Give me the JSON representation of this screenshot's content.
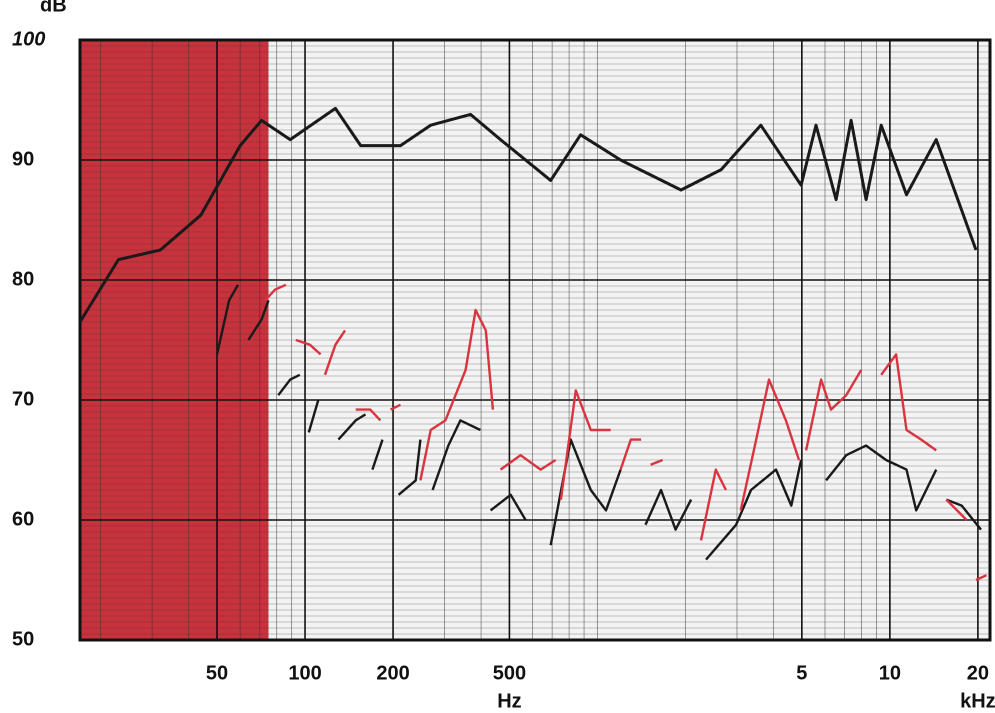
{
  "chart_data": {
    "type": "line",
    "ylabel": "dB",
    "x_unit_labels": [
      "Hz",
      "kHz"
    ],
    "xscale": "log",
    "xlim": [
      17,
      22000
    ],
    "ylim": [
      50,
      100
    ],
    "xticks": [
      50,
      100,
      200,
      500,
      {
        "value": 5000,
        "label": "5"
      },
      {
        "value": 10000,
        "label": "10"
      },
      {
        "value": 20000,
        "label": "20"
      }
    ],
    "yticks": [
      50,
      60,
      70,
      80,
      90,
      100
    ],
    "grid": true,
    "shaded_xrange": [
      17,
      75
    ],
    "shaded_color": "#c8323c",
    "series": [
      {
        "color": "#1a1a1a",
        "x": [
          17,
          23,
          32,
          44,
          60,
          71,
          89,
          127,
          155,
          212,
          269,
          368,
          466,
          692,
          876,
          1200,
          1930,
          2650,
          3620,
          4970,
          5590,
          6550,
          7370,
          8290,
          9340,
          11400,
          14400,
          19700
        ],
        "values": [
          76.5,
          81.7,
          82.5,
          85.4,
          91.2,
          93.3,
          91.7,
          94.3,
          91.2,
          91.2,
          92.9,
          93.8,
          91.7,
          88.3,
          92.1,
          90,
          87.5,
          89.2,
          92.9,
          87.9,
          92.9,
          86.7,
          93.3,
          86.7,
          92.9,
          87.1,
          91.7,
          82.5
        ]
      },
      {
        "color": "#1a1a1a",
        "x": [
          50,
          55,
          59,
          null,
          64,
          71,
          75,
          null,
          81,
          89,
          96,
          null,
          103,
          111,
          null,
          130,
          149,
          161,
          null,
          170,
          184,
          null,
          209,
          239,
          248,
          null,
          273,
          309,
          340,
          398,
          null,
          431,
          505,
          568,
          null,
          692,
          810,
          949,
          1070,
          1200,
          null,
          1460,
          1650,
          1850,
          2090,
          null,
          2350,
          2980,
          3350,
          4080,
          4600,
          4970,
          null,
          6050,
          7090,
          8290,
          9710,
          11400,
          12300,
          14400,
          null,
          15600,
          17600,
          20500
        ],
        "values": [
          73.8,
          78.3,
          79.6,
          null,
          75,
          76.7,
          78.3,
          null,
          70.4,
          71.7,
          72.1,
          null,
          67.3,
          70,
          null,
          66.7,
          68.3,
          68.8,
          null,
          64.2,
          66.7,
          null,
          62.1,
          63.3,
          66.7,
          null,
          62.5,
          66.2,
          68.3,
          67.5,
          null,
          60.8,
          62.1,
          60,
          null,
          57.9,
          66.7,
          62.5,
          60.8,
          64.2,
          null,
          59.6,
          62.5,
          59.2,
          61.7,
          null,
          56.7,
          59.6,
          62.5,
          64.2,
          61.2,
          65,
          null,
          63.3,
          65.4,
          66.2,
          65,
          64.2,
          60.8,
          64.2,
          null,
          61.7,
          61.2,
          59.2
        ]
      },
      {
        "color": "#d9343f",
        "x": [
          73,
          79,
          86,
          null,
          93,
          104,
          113,
          null,
          117,
          127,
          137,
          null,
          149,
          167,
          181,
          null,
          196,
          212,
          null,
          248,
          269,
          302,
          354,
          383,
          415,
          439,
          null,
          466,
          546,
          639,
          720,
          null,
          750,
          843,
          949,
          1110,
          null,
          1200,
          1300,
          1410,
          null,
          1520,
          1670,
          null,
          2260,
          2540,
          2750,
          null,
          3090,
          3490,
          3860,
          4410,
          4890,
          null,
          5170,
          5820,
          6290,
          7090,
          7980,
          null,
          9340,
          10500,
          11400,
          12800,
          14400,
          null,
          15600,
          18300,
          null,
          19700,
          21400
        ],
        "values": [
          78.3,
          79.2,
          79.6,
          null,
          75,
          74.6,
          73.8,
          null,
          72.1,
          74.6,
          75.8,
          null,
          69.2,
          69.2,
          68.3,
          null,
          69.2,
          69.6,
          null,
          63.3,
          67.5,
          68.3,
          72.5,
          77.5,
          75.8,
          69.2,
          null,
          64.2,
          65.4,
          64.2,
          65,
          null,
          61.7,
          70.8,
          67.5,
          67.5,
          null,
          64.2,
          66.7,
          66.7,
          null,
          64.6,
          65,
          null,
          58.3,
          64.2,
          62.5,
          null,
          60.8,
          66.7,
          71.7,
          68.3,
          65,
          null,
          65.8,
          71.7,
          69.2,
          70.4,
          72.5,
          null,
          72.1,
          73.8,
          67.5,
          66.7,
          65.8,
          null,
          61.7,
          60,
          null,
          55,
          55.4
        ]
      }
    ]
  }
}
